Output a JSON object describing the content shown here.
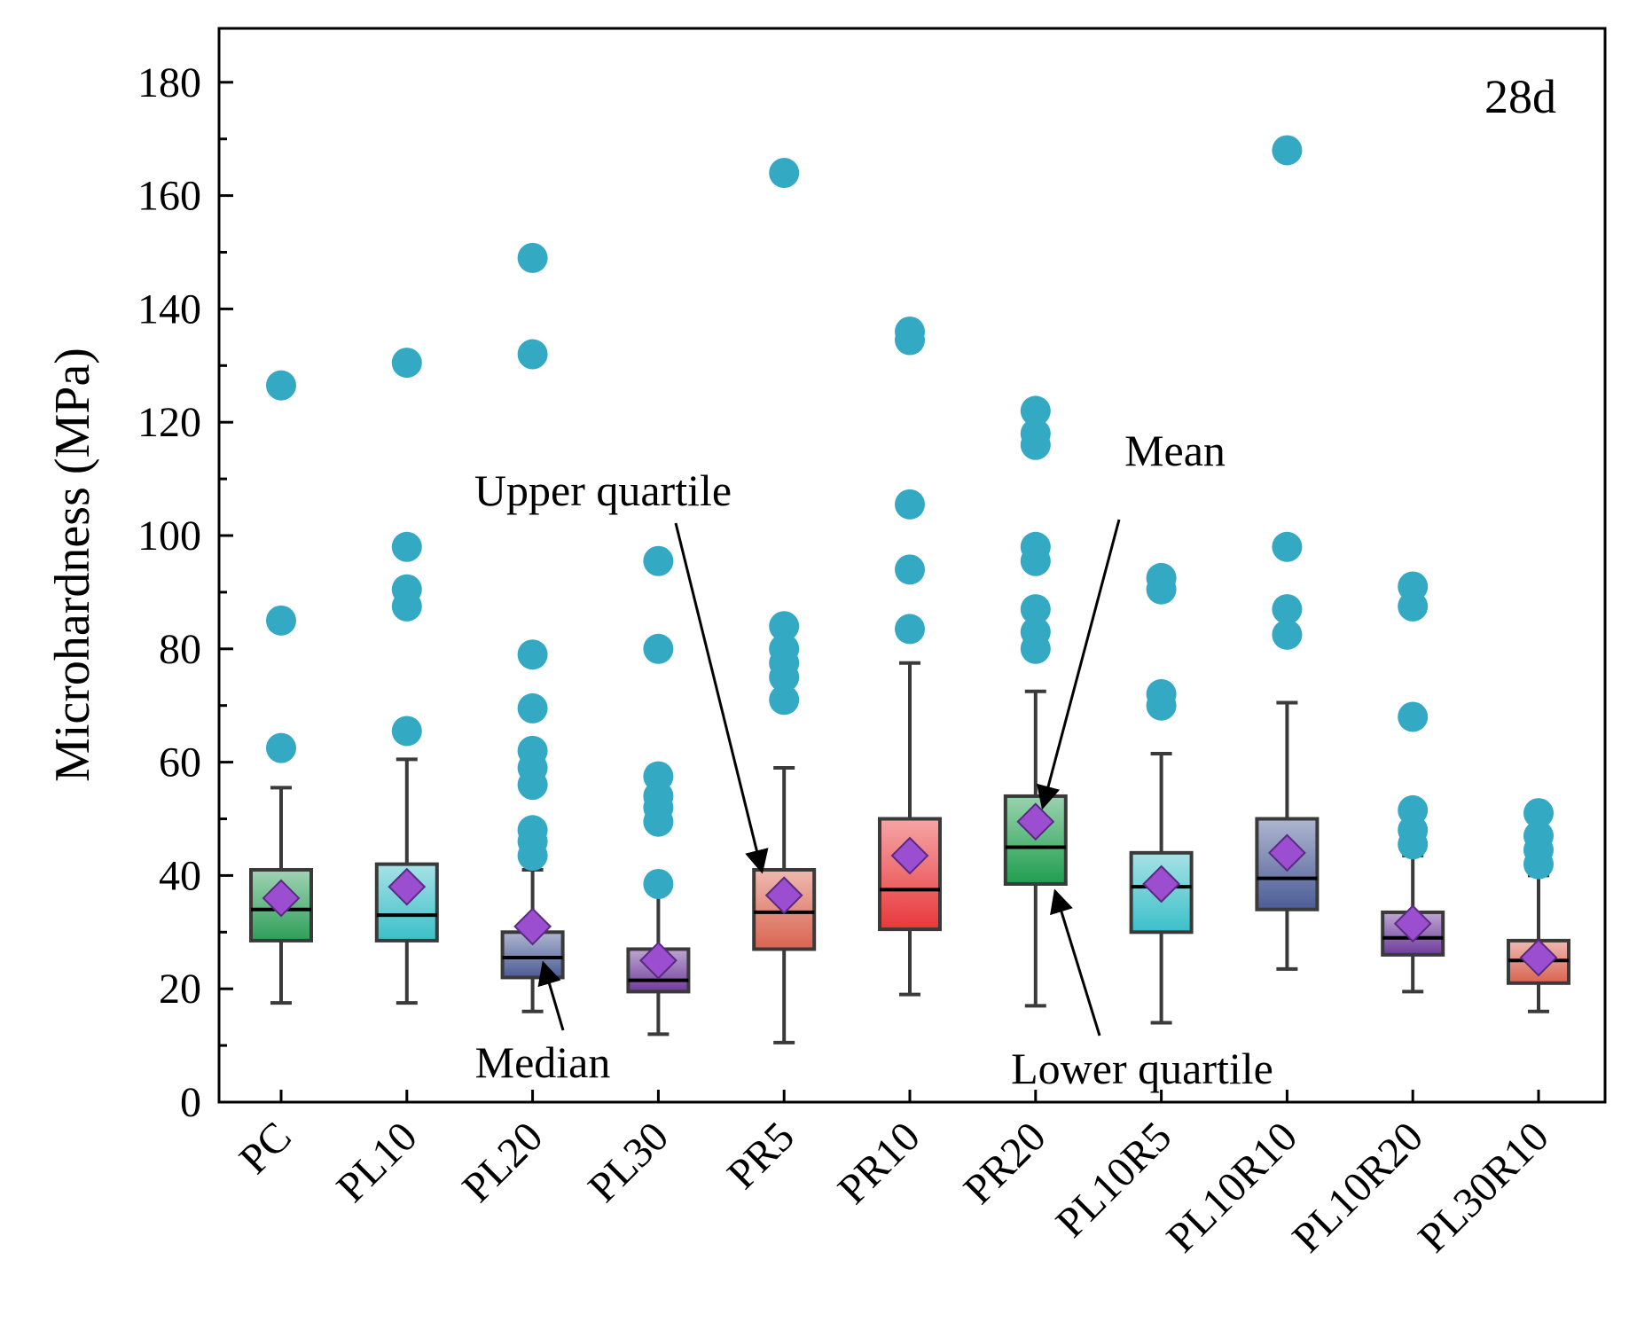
{
  "chart_data": {
    "type": "box",
    "title": "",
    "panel_label": "28d",
    "ylabel": "Microhardness (MPa)",
    "xlabel": "",
    "ylim": [
      0,
      190
    ],
    "yticks": [
      0,
      20,
      40,
      60,
      80,
      100,
      120,
      140,
      160,
      180
    ],
    "categories": [
      "PC",
      "PL10",
      "PL20",
      "PL30",
      "PR5",
      "PR10",
      "PR20",
      "PL10R5",
      "PL10R10",
      "PL10R20",
      "PL30R10"
    ],
    "boxes": [
      {
        "name": "PC",
        "whisker_low": 17.5,
        "q1": 28.5,
        "median": 34,
        "q3": 41,
        "whisker_high": 55.5,
        "mean": 36,
        "outliers": [
          62.5,
          85,
          126.5
        ],
        "color": "#2e9e58"
      },
      {
        "name": "PL10",
        "whisker_low": 17.5,
        "q1": 28.5,
        "median": 33,
        "q3": 42,
        "whisker_high": 60.5,
        "mean": 38,
        "outliers": [
          65.5,
          87.5,
          90.5,
          98,
          130.5
        ],
        "color": "#3bbfc8"
      },
      {
        "name": "PL20",
        "whisker_low": 16,
        "q1": 22,
        "median": 25.5,
        "q3": 30,
        "whisker_high": 41,
        "mean": 31,
        "outliers": [
          43.5,
          46,
          48,
          56,
          59,
          62,
          69.5,
          79,
          132,
          149
        ],
        "color": "#4c5c96"
      },
      {
        "name": "PL30",
        "whisker_low": 12,
        "q1": 19.5,
        "median": 21.5,
        "q3": 27,
        "whisker_high": 38,
        "mean": 25,
        "outliers": [
          38.5,
          49.5,
          52,
          54,
          57.5,
          80,
          95.5
        ],
        "color": "#6e3b9b"
      },
      {
        "name": "PR5",
        "whisker_low": 10.5,
        "q1": 27,
        "median": 33.5,
        "q3": 41,
        "whisker_high": 59,
        "mean": 36.5,
        "outliers": [
          71,
          75,
          77.5,
          80,
          84,
          164
        ],
        "color": "#d96450"
      },
      {
        "name": "PR10",
        "whisker_low": 19,
        "q1": 30.5,
        "median": 37.5,
        "q3": 50,
        "whisker_high": 77.5,
        "mean": 43.5,
        "outliers": [
          83.5,
          94,
          105.5,
          134.5,
          136
        ],
        "color": "#e8383a"
      },
      {
        "name": "PR20",
        "whisker_low": 17,
        "q1": 38.5,
        "median": 45,
        "q3": 54,
        "whisker_high": 72.5,
        "mean": 49.5,
        "outliers": [
          80,
          83,
          87,
          95.5,
          98,
          116,
          118,
          122
        ],
        "color": "#1f9e4e"
      },
      {
        "name": "PL10R5",
        "whisker_low": 14,
        "q1": 30,
        "median": 38,
        "q3": 44,
        "whisker_high": 61.5,
        "mean": 38.5,
        "outliers": [
          70,
          72,
          90.5,
          92.5
        ],
        "color": "#3bbfc8"
      },
      {
        "name": "PL10R10",
        "whisker_low": 23.5,
        "q1": 34,
        "median": 39.5,
        "q3": 50,
        "whisker_high": 70.5,
        "mean": 44,
        "outliers": [
          82.5,
          87,
          98,
          168
        ],
        "color": "#4c5c96"
      },
      {
        "name": "PL10R20",
        "whisker_low": 19.5,
        "q1": 26,
        "median": 29,
        "q3": 33.5,
        "whisker_high": 43.5,
        "mean": 31.5,
        "outliers": [
          45.5,
          48,
          51.5,
          68,
          87.5,
          91
        ],
        "color": "#6e3b9b"
      },
      {
        "name": "PL30R10",
        "whisker_low": 16,
        "q1": 21,
        "median": 25,
        "q3": 28.5,
        "whisker_high": 40,
        "mean": 25.5,
        "outliers": [
          42,
          44.5,
          47,
          51
        ],
        "color": "#d96450"
      }
    ],
    "outlier_color": "#34a9c4",
    "mean_marker_color": "#9b4fd0",
    "annotations": [
      {
        "label": "Upper quartile",
        "target_category": "PR5",
        "target_value": 41
      },
      {
        "label": "Median",
        "target_category": "PL20",
        "target_value": 25.5
      },
      {
        "label": "Mean",
        "target_category": "PR20",
        "target_value": 49.5
      },
      {
        "label": "Lower quartile",
        "target_category": "PR20",
        "target_value": 38.5
      }
    ],
    "legend": "none",
    "grid": false
  }
}
